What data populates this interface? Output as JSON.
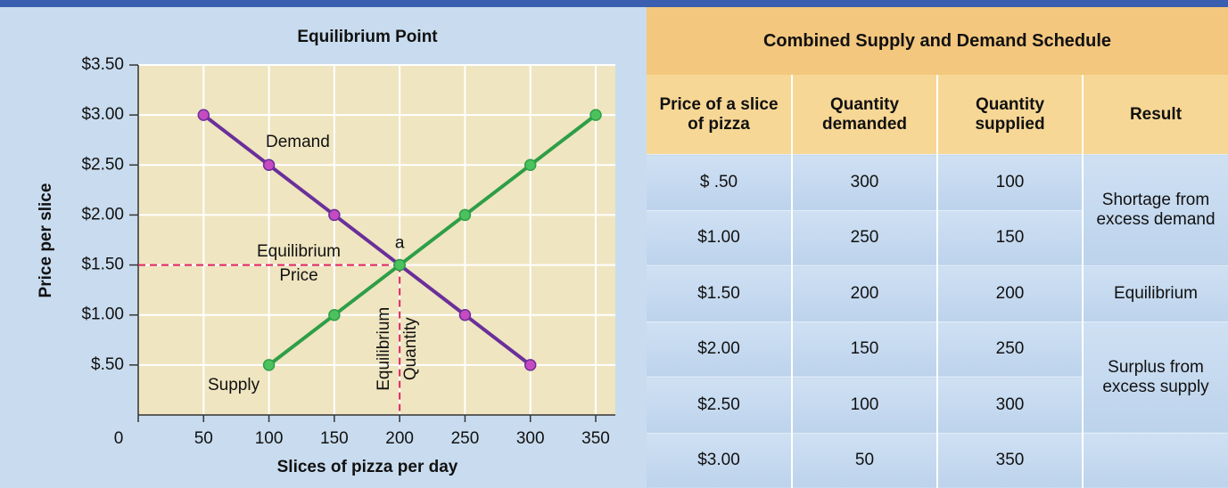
{
  "chart_data": {
    "type": "line",
    "title": "Equilibrium Point",
    "x_label": "Slices of pizza per day",
    "y_label": "Price per slice",
    "series": [
      {
        "name": "Demand",
        "color": "#6a2f9a",
        "x": [
          50,
          100,
          150,
          200,
          250,
          300
        ],
        "values": [
          3.0,
          2.5,
          2.0,
          1.5,
          1.0,
          0.5
        ]
      },
      {
        "name": "Supply",
        "color": "#2e9e48",
        "x": [
          100,
          150,
          200,
          250,
          300,
          350
        ],
        "values": [
          0.5,
          1.0,
          1.5,
          2.0,
          2.5,
          3.0
        ]
      }
    ],
    "xlim": [
      0,
      350
    ],
    "ylim": [
      0,
      3.5
    ],
    "xticks": [
      0,
      50,
      100,
      150,
      200,
      250,
      300,
      350
    ],
    "yticks": [
      {
        "value": 0.5,
        "label": "$.50"
      },
      {
        "value": 1.0,
        "label": "$1.00"
      },
      {
        "value": 1.5,
        "label": "$1.50"
      },
      {
        "value": 2.0,
        "label": "$2.00"
      },
      {
        "value": 2.5,
        "label": "$2.50"
      },
      {
        "value": 3.0,
        "label": "$3.00"
      },
      {
        "value": 3.5,
        "label": "$3.50"
      }
    ],
    "grid": true,
    "equilibrium": {
      "x": 200,
      "y": 1.5,
      "label": "a",
      "price_label": [
        "Equilibrium",
        "Price"
      ],
      "quantity_label": [
        "Equilibrium",
        "Quantity"
      ]
    }
  },
  "table": {
    "title": "Combined Supply and Demand Schedule",
    "headers": [
      "Price of a slice of pizza",
      "Quantity demanded",
      "Quantity supplied",
      "Result"
    ],
    "rows": [
      [
        "$ .50",
        "300",
        "100"
      ],
      [
        "$1.00",
        "250",
        "150"
      ],
      [
        "$1.50",
        "200",
        "200"
      ],
      [
        "$2.00",
        "150",
        "250"
      ],
      [
        "$2.50",
        "100",
        "300"
      ],
      [
        "$3.00",
        "50",
        "350"
      ]
    ],
    "results": [
      "Shortage from excess demand",
      "Equilibrium",
      "Surplus from excess supply"
    ]
  }
}
